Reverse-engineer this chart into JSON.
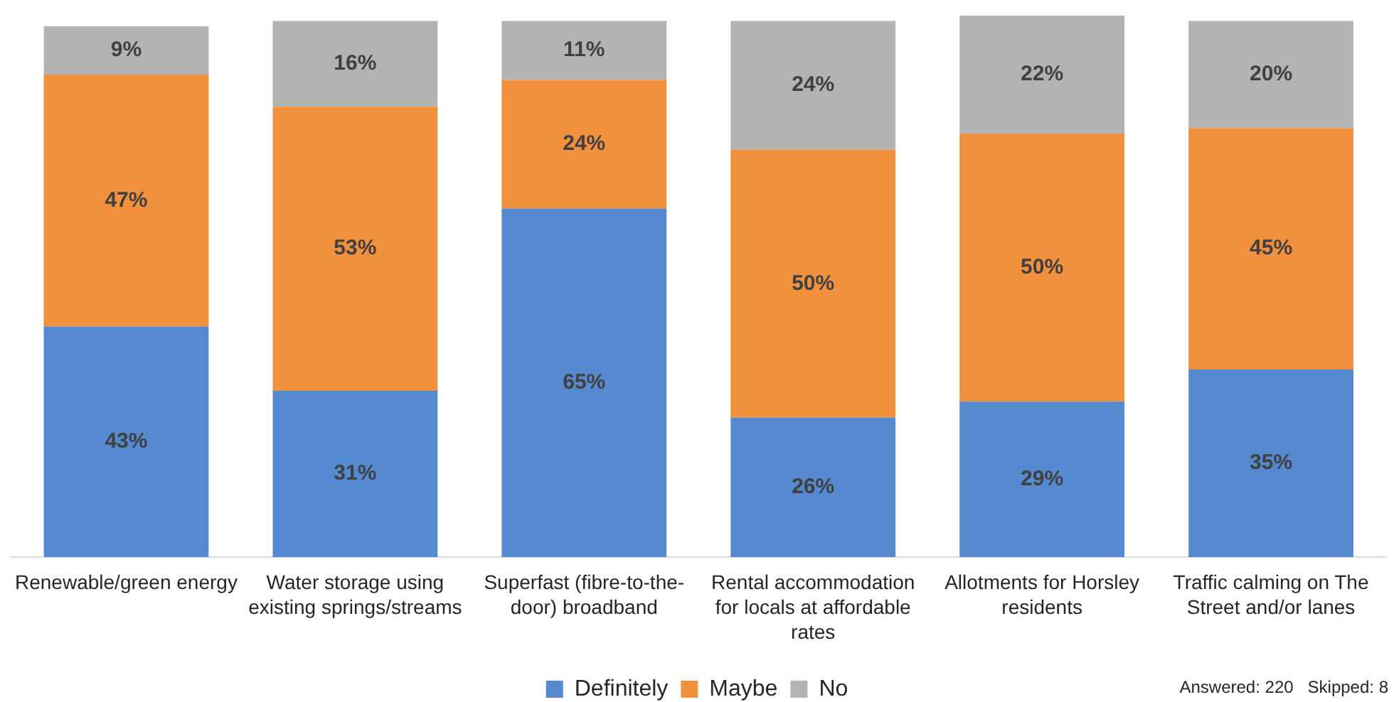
{
  "chart_data": {
    "type": "bar",
    "stacked": true,
    "legend": "bottom",
    "tick_labels": "x",
    "categories": [
      "Renewable/green energy",
      "Water storage using existing springs/streams",
      "Superfast (fibre-to-the-door) broadband",
      "Rental accommodation for locals at affordable rates",
      "Allotments for Horsley residents",
      "Traffic calming on The Street and/or lanes"
    ],
    "series": [
      {
        "name": "Definitely",
        "color": "#558ad0",
        "values": [
          43,
          31,
          65,
          26,
          29,
          35
        ],
        "value_labels": [
          "43%",
          "31%",
          "65%",
          "26%",
          "29%",
          "35%"
        ]
      },
      {
        "name": "Maybe",
        "color": "#f2913d",
        "values": [
          47,
          53,
          24,
          50,
          50,
          45
        ],
        "value_labels": [
          "47%",
          "53%",
          "24%",
          "50%",
          "50%",
          "45%"
        ]
      },
      {
        "name": "No",
        "color": "#b3b3b3",
        "values": [
          9,
          16,
          11,
          24,
          22,
          20
        ],
        "value_labels": [
          "9%",
          "16%",
          "11%",
          "24%",
          "22%",
          "20%"
        ]
      }
    ],
    "annotations": [
      "Answered: 220   Skipped: 8"
    ]
  }
}
